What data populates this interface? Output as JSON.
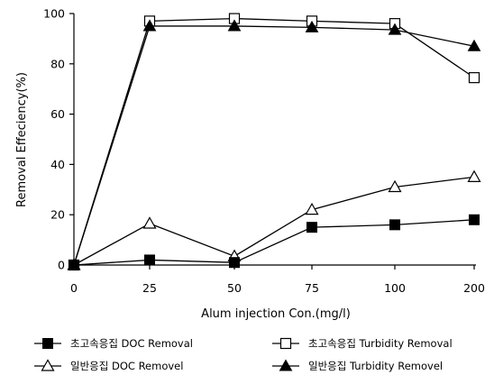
{
  "chart_data": {
    "type": "line",
    "xlabel": "Alum injection Con.(mg/l)",
    "ylabel": "Removal Effeciency(%)",
    "categories": [
      "0",
      "25",
      "50",
      "75",
      "100",
      "200"
    ],
    "ylim": [
      0,
      100
    ],
    "yticks": [
      "0",
      "20",
      "40",
      "60",
      "80",
      "100"
    ],
    "grid": false,
    "legend_position": "bottom",
    "series": [
      {
        "name": "초고속응집 DOC Removal",
        "marker": "square-filled",
        "color": "#000000",
        "values": [
          0,
          2,
          1,
          15,
          16,
          18
        ]
      },
      {
        "name": "초고속응집 Turbidity Removal",
        "marker": "square-open",
        "color": "#000000",
        "values": [
          0,
          97,
          98,
          97,
          96,
          74.5
        ]
      },
      {
        "name": "일반응집 DOC Removel",
        "marker": "triangle-open",
        "color": "#000000",
        "values": [
          0,
          16.5,
          3.5,
          22,
          31,
          35
        ]
      },
      {
        "name": "일반응집 Turbidity Removel",
        "marker": "triangle-filled",
        "color": "#000000",
        "values": [
          0,
          95,
          95,
          94.5,
          93.5,
          87
        ]
      }
    ]
  }
}
